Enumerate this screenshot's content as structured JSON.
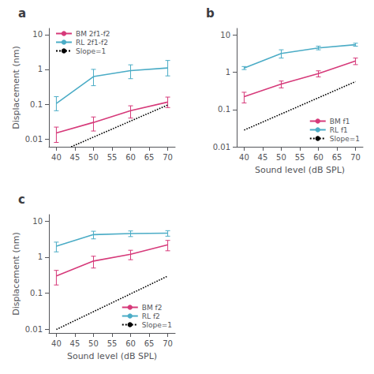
{
  "chart_data": [
    {
      "type": "line",
      "title": "a",
      "x": [
        40,
        50,
        60,
        70
      ],
      "series": [
        {
          "name": "BM 2f1-f2",
          "color": "#d63a7a",
          "values": [
            0.015,
            0.03,
            0.065,
            0.115
          ],
          "error_lo": [
            0.007,
            0.013,
            0.025,
            0.035
          ],
          "error_hi": [
            0.007,
            0.013,
            0.025,
            0.045
          ]
        },
        {
          "name": "RL 2f1-f2",
          "color": "#4bacc6",
          "values": [
            0.105,
            0.62,
            0.92,
            1.1
          ],
          "error_lo": [
            0.04,
            0.28,
            0.38,
            0.45
          ],
          "error_hi": [
            0.06,
            0.38,
            0.43,
            0.7
          ]
        },
        {
          "name": "Slope=1",
          "color": "#000000",
          "x": [
            44,
            70
          ],
          "values": [
            0.006,
            0.095
          ],
          "line_style": "dotted"
        }
      ],
      "xlim": [
        38,
        72
      ],
      "xticks": [
        40,
        45,
        50,
        55,
        60,
        65,
        70
      ],
      "ylim": [
        0.006,
        15
      ],
      "yticks": [
        0.01,
        0.1,
        1,
        10
      ],
      "log": "y",
      "grid": false,
      "legend": "upper left",
      "ylabel": "Displacement (nm)"
    },
    {
      "type": "line",
      "title": "b",
      "x": [
        40,
        50,
        60,
        70
      ],
      "series": [
        {
          "name": "BM f1",
          "color": "#d63a7a",
          "values": [
            0.22,
            0.48,
            0.92,
            2.0
          ],
          "error_lo": [
            0.07,
            0.1,
            0.17,
            0.4
          ],
          "error_hi": [
            0.07,
            0.1,
            0.17,
            0.4
          ]
        },
        {
          "name": "RL f1",
          "color": "#4bacc6",
          "values": [
            1.3,
            3.2,
            4.5,
            5.5
          ],
          "error_lo": [
            0.12,
            0.8,
            0.5,
            0.5
          ],
          "error_hi": [
            0.12,
            0.8,
            0.5,
            0.5
          ]
        },
        {
          "name": "Slope=1",
          "color": "#000000",
          "x": [
            40,
            70
          ],
          "values": [
            0.028,
            0.56
          ],
          "line_style": "dotted"
        }
      ],
      "xlim": [
        38,
        72
      ],
      "xticks": [
        40,
        45,
        50,
        55,
        60,
        65,
        70
      ],
      "ylim": [
        0.01,
        15
      ],
      "yticks": [
        0.01,
        0.1,
        1,
        10
      ],
      "log": "y",
      "grid": false,
      "legend": "lower right",
      "xlabel": "Sound level (dB SPL)"
    },
    {
      "type": "line",
      "title": "c",
      "x": [
        40,
        50,
        60,
        70
      ],
      "series": [
        {
          "name": "BM f2",
          "color": "#d63a7a",
          "values": [
            0.3,
            0.78,
            1.2,
            2.2
          ],
          "error_lo": [
            0.13,
            0.28,
            0.35,
            0.7
          ],
          "error_hi": [
            0.13,
            0.28,
            0.35,
            0.7
          ]
        },
        {
          "name": "RL f2",
          "color": "#4bacc6",
          "values": [
            2.0,
            4.2,
            4.5,
            4.6
          ],
          "error_lo": [
            0.6,
            1.0,
            0.8,
            0.8
          ],
          "error_hi": [
            0.6,
            1.0,
            0.8,
            0.8
          ]
        },
        {
          "name": "Slope=1",
          "color": "#000000",
          "x": [
            40,
            70
          ],
          "values": [
            0.01,
            0.3
          ],
          "line_style": "dotted"
        }
      ],
      "xlim": [
        38,
        72
      ],
      "xticks": [
        40,
        45,
        50,
        55,
        60,
        65,
        70
      ],
      "ylim": [
        0.008,
        15
      ],
      "yticks": [
        0.01,
        0.1,
        1,
        10
      ],
      "log": "y",
      "grid": false,
      "legend": "lower right",
      "ylabel": "Displacement (nm)",
      "xlabel": "Sound level (dB SPL)"
    }
  ]
}
